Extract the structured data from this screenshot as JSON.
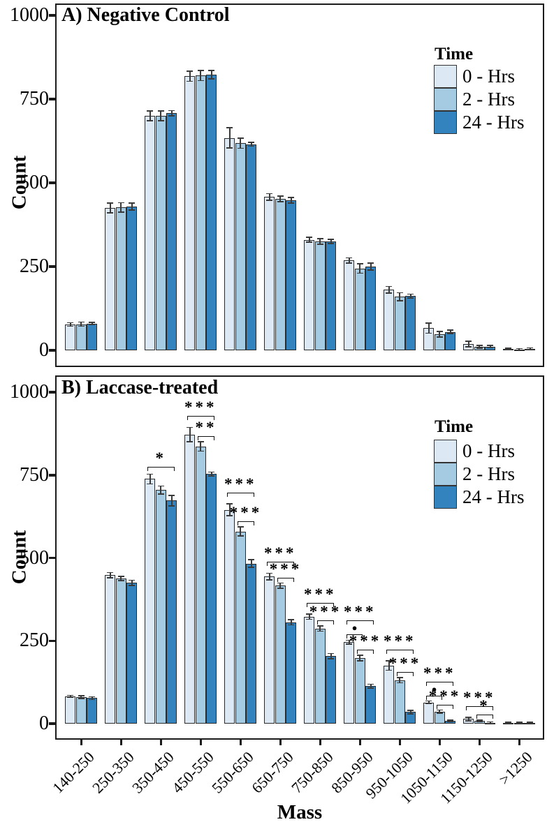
{
  "figure": {
    "y_axis_label": "Count",
    "x_axis_label": "Mass",
    "legend": {
      "title": "Time",
      "entries": [
        {
          "label": "0 - Hrs",
          "color": "#dce8f4"
        },
        {
          "label": "2 - Hrs",
          "color": "#a5cbe2"
        },
        {
          "label": "24 - Hrs",
          "color": "#3383bf"
        }
      ]
    },
    "colors": {
      "hrs0": "#dce8f4",
      "hrs2": "#a5cbe2",
      "hrs24": "#3383bf",
      "bar_outline": "#2b2b2b",
      "error_bar": "#3a3a3a",
      "axis": "#1b1b1b",
      "background": "#ffffff"
    }
  },
  "chart_data": [
    {
      "type": "bar",
      "panel_label": "A) Negative Control",
      "ylabel": "Count",
      "ylim": [
        0,
        1000
      ],
      "yticks": [
        0,
        250,
        500,
        750,
        1000
      ],
      "legend_title": "Time",
      "legend_position": "upper right",
      "grid": false,
      "categories": [
        "140-250",
        "250-350",
        "350-450",
        "450-550",
        "550-650",
        "650-750",
        "750-850",
        "850-950",
        "950-1050",
        "1050-1150",
        "1150-1250",
        ">1250"
      ],
      "series": [
        {
          "name": "0 - Hrs",
          "values": [
            77,
            425,
            700,
            818,
            634,
            458,
            330,
            268,
            181,
            66,
            19,
            4
          ],
          "errors": [
            5,
            15,
            14,
            15,
            30,
            10,
            7,
            8,
            10,
            15,
            8,
            2
          ]
        },
        {
          "name": "2 - Hrs",
          "values": [
            78,
            427,
            700,
            820,
            618,
            452,
            325,
            244,
            160,
            48,
            10,
            3
          ],
          "errors": [
            6,
            14,
            14,
            15,
            15,
            8,
            8,
            14,
            12,
            8,
            4,
            2
          ]
        },
        {
          "name": "24 - Hrs",
          "values": [
            80,
            429,
            708,
            823,
            615,
            448,
            325,
            250,
            162,
            55,
            11,
            5
          ],
          "errors": [
            3,
            10,
            8,
            12,
            6,
            8,
            6,
            10,
            6,
            5,
            3,
            2
          ]
        }
      ],
      "significance": []
    },
    {
      "type": "bar",
      "panel_label": "B) Laccase-treated",
      "ylabel": "Count",
      "xlabel": "Mass",
      "ylim": [
        0,
        1000
      ],
      "yticks": [
        0,
        250,
        500,
        750,
        1000
      ],
      "legend_title": "Time",
      "legend_position": "upper right",
      "grid": false,
      "categories": [
        "140-250",
        "250-350",
        "350-450",
        "450-550",
        "550-650",
        "650-750",
        "750-850",
        "850-950",
        "950-1050",
        "1050-1150",
        "1150-1250",
        ">1250"
      ],
      "series": [
        {
          "name": "0 - Hrs",
          "values": [
            82,
            448,
            738,
            872,
            645,
            444,
            323,
            246,
            175,
            64,
            14,
            3
          ],
          "errors": [
            3,
            8,
            15,
            22,
            18,
            10,
            8,
            6,
            14,
            4,
            5,
            1
          ]
        },
        {
          "name": "2 - Hrs",
          "values": [
            80,
            438,
            705,
            836,
            580,
            416,
            287,
            198,
            131,
            36,
            8,
            3
          ],
          "errors": [
            4,
            6,
            12,
            14,
            14,
            8,
            8,
            8,
            8,
            5,
            3,
            1
          ]
        },
        {
          "name": "24 - Hrs",
          "values": [
            77,
            425,
            673,
            753,
            483,
            306,
            204,
            113,
            35,
            8,
            3,
            3
          ],
          "errors": [
            4,
            8,
            16,
            6,
            12,
            8,
            8,
            6,
            5,
            3,
            2,
            1
          ]
        }
      ],
      "significance": [
        {
          "category": "350-450",
          "category_index": 2,
          "bars": [
            0,
            2
          ],
          "label": "*"
        },
        {
          "category": "450-550",
          "category_index": 3,
          "bars": [
            0,
            2
          ],
          "label": "***"
        },
        {
          "category": "450-550",
          "category_index": 3,
          "bars": [
            1,
            2
          ],
          "label": "**"
        },
        {
          "category": "550-650",
          "category_index": 4,
          "bars": [
            0,
            2
          ],
          "label": "***"
        },
        {
          "category": "550-650",
          "category_index": 4,
          "bars": [
            1,
            2
          ],
          "label": "***"
        },
        {
          "category": "650-750",
          "category_index": 5,
          "bars": [
            0,
            2
          ],
          "label": "***"
        },
        {
          "category": "650-750",
          "category_index": 5,
          "bars": [
            1,
            2
          ],
          "label": "***"
        },
        {
          "category": "750-850",
          "category_index": 6,
          "bars": [
            0,
            2
          ],
          "label": "***"
        },
        {
          "category": "750-850",
          "category_index": 6,
          "bars": [
            1,
            2
          ],
          "label": "***"
        },
        {
          "category": "850-950",
          "category_index": 7,
          "bars": [
            0,
            2
          ],
          "label": "***"
        },
        {
          "category": "850-950",
          "category_index": 7,
          "bars": [
            0,
            1
          ],
          "label": "●"
        },
        {
          "category": "850-950",
          "category_index": 7,
          "bars": [
            1,
            2
          ],
          "label": "***"
        },
        {
          "category": "950-1050",
          "category_index": 8,
          "bars": [
            0,
            2
          ],
          "label": "***"
        },
        {
          "category": "950-1050",
          "category_index": 8,
          "bars": [
            1,
            2
          ],
          "label": "***"
        },
        {
          "category": "1050-1150",
          "category_index": 9,
          "bars": [
            0,
            2
          ],
          "label": "***"
        },
        {
          "category": "1050-1150",
          "category_index": 9,
          "bars": [
            0,
            1
          ],
          "label": "●"
        },
        {
          "category": "1050-1150",
          "category_index": 9,
          "bars": [
            1,
            2
          ],
          "label": "***"
        },
        {
          "category": "1150-1250",
          "category_index": 10,
          "bars": [
            0,
            2
          ],
          "label": "***"
        },
        {
          "category": "1150-1250",
          "category_index": 10,
          "bars": [
            1,
            2
          ],
          "label": "*"
        }
      ]
    }
  ]
}
